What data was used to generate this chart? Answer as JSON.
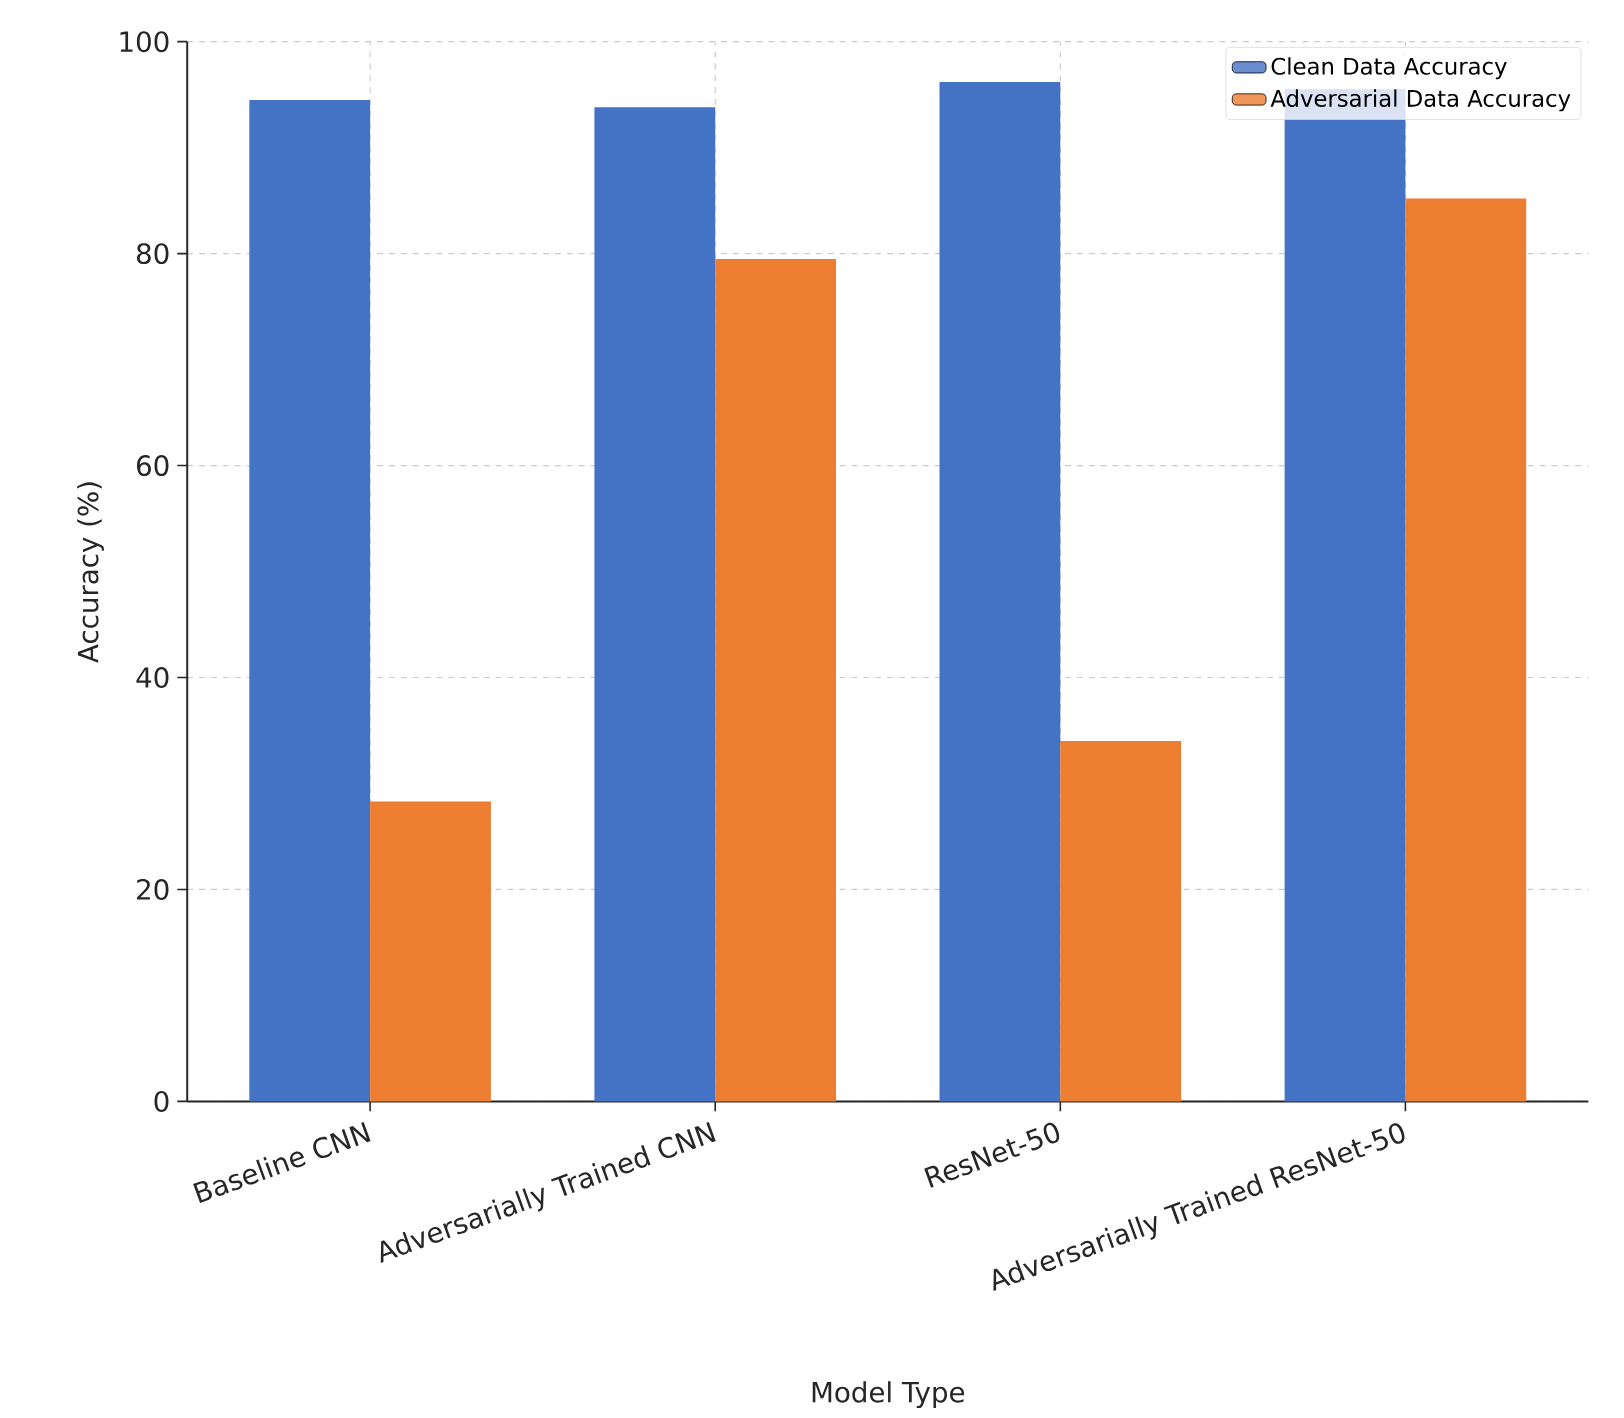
{
  "chart_data": {
    "type": "bar",
    "xlabel": "Model Type",
    "ylabel": "Accuracy (%)",
    "categories": [
      "Baseline CNN",
      "Adversarially Trained CNN",
      "ResNet-50",
      "Adversarially Trained ResNet-50"
    ],
    "series": [
      {
        "name": "Clean Data Accuracy",
        "color": "#4472c4",
        "values": [
          94.5,
          93.8,
          96.2,
          95.5
        ]
      },
      {
        "name": "Adversarial Data Accuracy",
        "color": "#ed7d31",
        "values": [
          28.3,
          79.5,
          34.0,
          85.2
        ]
      }
    ],
    "ylim": [
      0,
      100
    ],
    "yticks": [
      0,
      20,
      40,
      60,
      80,
      100
    ],
    "grid": true,
    "legend": "top right"
  }
}
